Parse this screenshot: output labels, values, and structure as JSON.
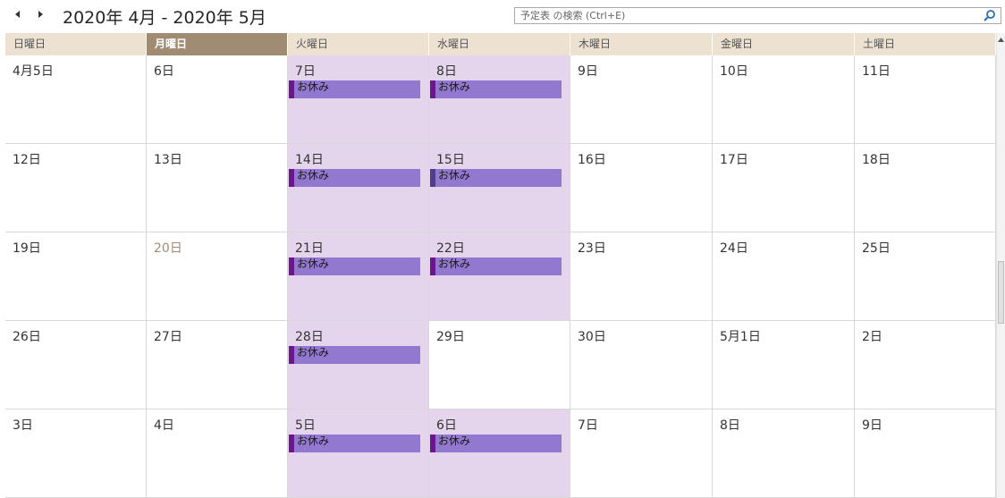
{
  "header": {
    "range_title": "2020年 4月 - 2020年 5月",
    "search_placeholder": "予定表 の検索 (Ctrl+E)",
    "prev_icon": "triangle-left-icon",
    "next_icon": "triangle-right-icon",
    "search_icon": "magnifier-icon"
  },
  "weekdays": [
    "日曜日",
    "月曜日",
    "火曜日",
    "水曜日",
    "木曜日",
    "金曜日",
    "土曜日"
  ],
  "today_weekday_index": 1,
  "colors": {
    "header_bg": "#ede2d1",
    "today_header_bg": "#a08c72",
    "busy_day_bg": "#e5d5ec",
    "event_bg": "#9378d0",
    "event_bar": "#68178c"
  },
  "weeks": [
    {
      "days": [
        {
          "label": "4月5日"
        },
        {
          "label": "6日"
        },
        {
          "label": "7日",
          "shaded": true,
          "event": "お休み"
        },
        {
          "label": "8日",
          "shaded": true,
          "event": "お休み"
        },
        {
          "label": "9日"
        },
        {
          "label": "10日"
        },
        {
          "label": "11日"
        }
      ]
    },
    {
      "days": [
        {
          "label": "12日"
        },
        {
          "label": "13日"
        },
        {
          "label": "14日",
          "shaded": true,
          "event": "お休み"
        },
        {
          "label": "15日",
          "shaded": true,
          "event": "お休み",
          "alt": true
        },
        {
          "label": "16日"
        },
        {
          "label": "17日"
        },
        {
          "label": "18日"
        }
      ]
    },
    {
      "days": [
        {
          "label": "19日"
        },
        {
          "label": "20日",
          "muted": true
        },
        {
          "label": "21日",
          "shaded": true,
          "event": "お休み"
        },
        {
          "label": "22日",
          "shaded": true,
          "event": "お休み"
        },
        {
          "label": "23日"
        },
        {
          "label": "24日"
        },
        {
          "label": "25日"
        }
      ]
    },
    {
      "days": [
        {
          "label": "26日"
        },
        {
          "label": "27日"
        },
        {
          "label": "28日",
          "shaded": true,
          "event": "お休み"
        },
        {
          "label": "29日"
        },
        {
          "label": "30日"
        },
        {
          "label": "5月1日"
        },
        {
          "label": "2日"
        }
      ]
    },
    {
      "days": [
        {
          "label": "3日"
        },
        {
          "label": "4日"
        },
        {
          "label": "5日",
          "shaded": true,
          "event": "お休み"
        },
        {
          "label": "6日",
          "shaded": true,
          "event": "お休み"
        },
        {
          "label": "7日"
        },
        {
          "label": "8日"
        },
        {
          "label": "9日"
        }
      ]
    }
  ]
}
